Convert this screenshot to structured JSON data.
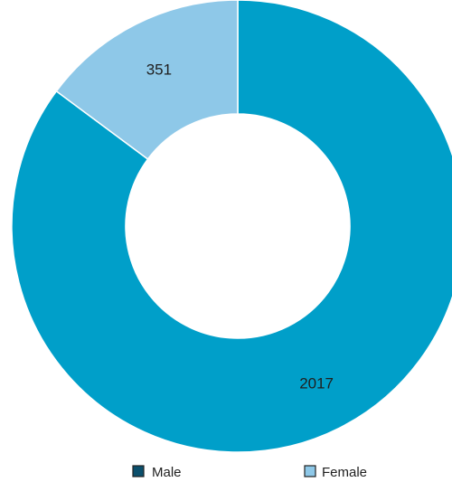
{
  "chart_data": {
    "type": "pie",
    "variant": "donut",
    "title": "",
    "categories": [
      "Male",
      "Female"
    ],
    "values": [
      2017,
      351
    ],
    "colors": {
      "Male": "#009fc9",
      "Female": "#8ec8e8",
      "Male_legend_swatch": "#0b4f6c",
      "Female_legend_swatch": "#8ec8e8"
    },
    "legend": {
      "placement": "bottom",
      "items": [
        "Male",
        "Female"
      ]
    },
    "data_labels": [
      "2017",
      "351"
    ]
  }
}
